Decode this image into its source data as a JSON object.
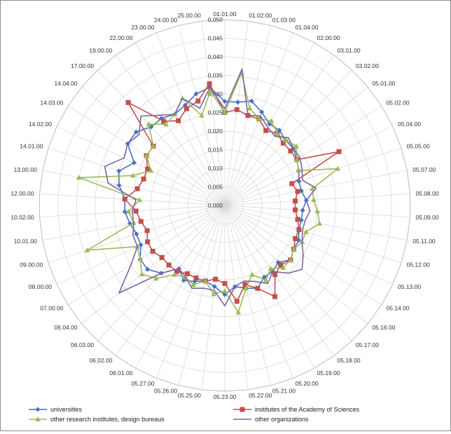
{
  "chart_data": {
    "type": "radar",
    "categories": [
      "01.01.00",
      "01.02.00",
      "01.03.00",
      "01.04.00",
      "02.00.00",
      "03.01.00",
      "03.02.00",
      "05.01.00",
      "05.02.00",
      "05.04.00",
      "05.05.00",
      "05.07.00",
      "05.08.00",
      "05.09.00",
      "05.11.00",
      "05.12.00",
      "05.13.00",
      "05.14.00",
      "05.16.00",
      "05.17.00",
      "05.18.00",
      "05.19.00",
      "05.20.00",
      "05.21.00",
      "05.22.00",
      "05.23.00",
      "05.25.00",
      "05.26.00",
      "05.27.00",
      "06.01.00",
      "06.02.00",
      "06.03.00",
      "06.04.00",
      "07.00.00",
      "08.00.00",
      "09.00.00",
      "10.01.00",
      "10.02.00",
      "12.00.00",
      "13.00.00",
      "14.01.00",
      "14.02.00",
      "14.03.00",
      "14.04.00",
      "17.00.00",
      "19.00.00",
      "22.00.00",
      "23.00.00",
      "24.00.00",
      "25.00.00"
    ],
    "ticks": [
      "0,000",
      "0,005",
      "0,010",
      "0,015",
      "0,020",
      "0,025",
      "0,030",
      "0,035",
      "0,040",
      "0,045",
      "0,050"
    ],
    "rmax": 0.05,
    "series": [
      {
        "name": "universities",
        "color": "#4472C4",
        "marker": "diamond",
        "values": [
          0.028,
          0.028,
          0.029,
          0.027,
          0.025,
          0.025,
          0.024,
          0.024,
          0.023,
          0.022,
          0.021,
          0.021,
          0.022,
          0.021,
          0.021,
          0.021,
          0.022,
          0.022,
          0.023,
          0.021,
          0.022,
          0.022,
          0.024,
          0.023,
          0.022,
          0.024,
          0.022,
          0.021,
          0.022,
          0.023,
          0.021,
          0.025,
          0.027,
          0.027,
          0.025,
          0.025,
          0.026,
          0.027,
          0.027,
          0.029,
          0.03,
          0.027,
          0.031,
          0.031,
          0.029,
          0.029,
          0.028,
          0.029,
          0.031,
          0.032
        ]
      },
      {
        "name": "institutes of the Academy of Sciences",
        "color": "#C0504D",
        "marker": "square",
        "values": [
          0.025,
          0.026,
          0.025,
          0.025,
          0.023,
          0.024,
          0.023,
          0.023,
          0.023,
          0.034,
          0.019,
          0.02,
          0.019,
          0.019,
          0.02,
          0.021,
          0.021,
          0.022,
          0.023,
          0.022,
          0.023,
          0.028,
          0.024,
          0.022,
          0.026,
          0.021,
          0.02,
          0.021,
          0.021,
          0.021,
          0.022,
          0.022,
          0.022,
          0.023,
          0.023,
          0.022,
          0.023,
          0.024,
          0.027,
          0.024,
          0.023,
          0.023,
          0.025,
          0.025,
          0.038,
          0.028,
          0.026,
          0.028,
          0.029,
          0.033
        ]
      },
      {
        "name": "other research institutes, design bureaus",
        "color": "#9BBB59",
        "marker": "triangle",
        "values": [
          0.025,
          0.036,
          0.027,
          0.025,
          0.026,
          0.024,
          0.024,
          0.025,
          0.023,
          0.022,
          0.032,
          0.024,
          0.024,
          0.025,
          0.026,
          0.023,
          0.023,
          0.022,
          0.023,
          0.023,
          0.021,
          0.023,
          0.02,
          0.023,
          0.029,
          0.023,
          0.024,
          0.021,
          0.023,
          0.022,
          0.023,
          0.027,
          0.029,
          0.027,
          0.026,
          0.039,
          0.025,
          0.026,
          0.023,
          0.04,
          0.026,
          0.022,
          0.025,
          0.025,
          0.03,
          0.027,
          0.028,
          0.031,
          0.025,
          0.031
        ]
      },
      {
        "name": "other organizations",
        "color": "#8064A2",
        "marker": "none",
        "values": [
          0.026,
          0.037,
          0.025,
          0.026,
          0.024,
          0.023,
          0.025,
          0.024,
          0.024,
          0.023,
          0.022,
          0.025,
          0.022,
          0.023,
          0.022,
          0.022,
          0.023,
          0.025,
          0.027,
          0.025,
          0.022,
          0.024,
          0.022,
          0.021,
          0.022,
          0.027,
          0.023,
          0.023,
          0.024,
          0.022,
          0.021,
          0.025,
          0.037,
          0.03,
          0.026,
          0.026,
          0.025,
          0.025,
          0.024,
          0.032,
          0.034,
          0.03,
          0.031,
          0.03,
          0.033,
          0.03,
          0.028,
          0.031,
          0.027,
          0.032
        ]
      }
    ],
    "grid": true,
    "legend": "bottom"
  }
}
